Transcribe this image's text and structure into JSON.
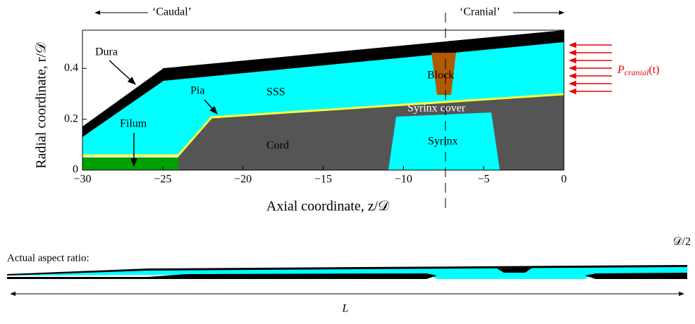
{
  "header": {
    "caudal": "‘Caudal’",
    "cranial": "‘Cranial’"
  },
  "axes": {
    "xlabel": "Axial coordinate, z/𝒟",
    "ylabel": "Radial coordinate, r/𝒟",
    "xlim": [
      -30,
      0
    ],
    "ylim": [
      0,
      0.55
    ],
    "xticks": [
      {
        "value": -30,
        "label": "−30"
      },
      {
        "value": -25,
        "label": "−25"
      },
      {
        "value": -20,
        "label": "−20"
      },
      {
        "value": -15,
        "label": "−15"
      },
      {
        "value": -10,
        "label": "−10"
      },
      {
        "value": -5,
        "label": "−5"
      },
      0
    ],
    "yticks": [
      0,
      0.2,
      0.4
    ]
  },
  "regions": {
    "dura": "Dura",
    "pia": "Pia",
    "sss": "SSS",
    "filum": "Filum",
    "cord": "Cord",
    "block": "Block",
    "syrinx_cover": "Syrinx cover",
    "syrinx": "Syrinx"
  },
  "pressure": {
    "symbol": "P",
    "subscript": "cranial",
    "argument": "(t)"
  },
  "aspect": {
    "title": "Actual aspect ratio:",
    "scale": "𝒟/2",
    "length": "L"
  }
}
